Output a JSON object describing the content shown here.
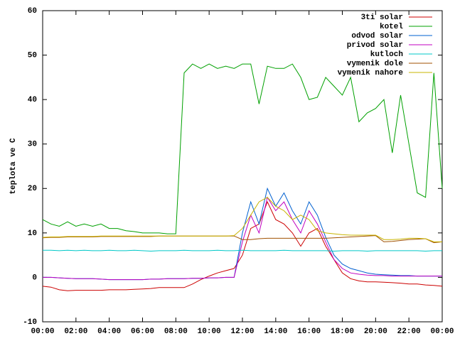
{
  "chart_data": {
    "type": "line",
    "ylabel": "teplota ve C",
    "x": [
      0,
      0.5,
      1,
      1.5,
      2,
      2.5,
      3,
      3.5,
      4,
      4.5,
      5,
      5.5,
      6,
      6.5,
      7,
      7.5,
      8,
      8.5,
      9,
      9.5,
      10,
      10.5,
      11,
      11.5,
      12,
      12.5,
      13,
      13.5,
      14,
      14.5,
      15,
      15.5,
      16,
      16.5,
      17,
      17.5,
      18,
      18.5,
      19,
      19.5,
      20,
      20.5,
      21,
      21.5,
      22,
      22.5,
      23,
      23.5,
      24
    ],
    "xlim": [
      0,
      24
    ],
    "xticks": [
      {
        "value": 0,
        "label": "00:00"
      },
      {
        "value": 2,
        "label": "02:00"
      },
      {
        "value": 4,
        "label": "04:00"
      },
      {
        "value": 6,
        "label": "06:00"
      },
      {
        "value": 8,
        "label": "08:00"
      },
      {
        "value": 10,
        "label": "10:00"
      },
      {
        "value": 12,
        "label": "12:00"
      },
      {
        "value": 14,
        "label": "14:00"
      },
      {
        "value": 16,
        "label": "16:00"
      },
      {
        "value": 18,
        "label": "18:00"
      },
      {
        "value": 20,
        "label": "20:00"
      },
      {
        "value": 22,
        "label": "22:00"
      },
      {
        "value": 24,
        "label": "00:00"
      }
    ],
    "ylim": [
      -10,
      60
    ],
    "yticks": [
      -10,
      0,
      10,
      20,
      30,
      40,
      50,
      60
    ],
    "grid": false,
    "legend": "top-right",
    "series": [
      {
        "name": "3ti solar",
        "color": "#cc0000",
        "values": [
          -2,
          -2.2,
          -2.8,
          -3,
          -2.9,
          -2.9,
          -2.9,
          -2.9,
          -2.8,
          -2.8,
          -2.8,
          -2.7,
          -2.6,
          -2.5,
          -2.3,
          -2.3,
          -2.3,
          -2.3,
          -1.5,
          -0.5,
          0.3,
          1,
          1.5,
          2,
          5,
          11,
          12,
          17,
          13,
          12,
          10,
          7,
          10,
          11,
          7,
          4,
          1,
          -0.3,
          -0.8,
          -1,
          -1,
          -1.1,
          -1.2,
          -1.3,
          -1.5,
          -1.5,
          -1.7,
          -1.8,
          -2
        ]
      },
      {
        "name": "kotel",
        "color": "#00a000",
        "values": [
          13,
          12,
          11.5,
          12.5,
          11.5,
          12,
          11.5,
          12,
          11,
          11,
          10.5,
          10.3,
          10,
          10,
          10,
          9.8,
          9.8,
          46,
          48,
          47,
          48,
          47,
          47.5,
          47,
          48,
          48,
          39,
          47.5,
          47,
          47,
          48,
          45,
          40,
          40.5,
          45,
          43,
          41,
          45,
          35,
          37,
          38,
          40,
          28,
          41,
          30,
          19,
          18,
          46,
          20
        ]
      },
      {
        "name": "odvod solar",
        "color": "#0060d0",
        "values": [
          0,
          0,
          -0.1,
          -0.2,
          -0.3,
          -0.3,
          -0.3,
          -0.4,
          -0.5,
          -0.5,
          -0.5,
          -0.5,
          -0.5,
          -0.4,
          -0.4,
          -0.3,
          -0.3,
          -0.3,
          -0.2,
          -0.2,
          -0.1,
          -0.1,
          0,
          0,
          10,
          17,
          12,
          20,
          16,
          19,
          15,
          12,
          17,
          14,
          9,
          5,
          3,
          2,
          1.5,
          1,
          0.7,
          0.6,
          0.5,
          0.4,
          0.4,
          0.3,
          0.3,
          0.3,
          0.3
        ]
      },
      {
        "name": "privod solar",
        "color": "#c000c0",
        "values": [
          0,
          0,
          -0.1,
          -0.2,
          -0.3,
          -0.3,
          -0.3,
          -0.4,
          -0.5,
          -0.5,
          -0.5,
          -0.5,
          -0.5,
          -0.4,
          -0.4,
          -0.3,
          -0.3,
          -0.3,
          -0.2,
          -0.2,
          -0.1,
          -0.1,
          0,
          0,
          8,
          14,
          10,
          18,
          15,
          17,
          13,
          10,
          15,
          12,
          8,
          4,
          2,
          1,
          0.7,
          0.5,
          0.4,
          0.4,
          0.3,
          0.3,
          0.3,
          0.3,
          0.3,
          0.3,
          0.3
        ]
      },
      {
        "name": "kutloch",
        "color": "#00c8c8",
        "values": [
          6.1,
          6.1,
          6,
          6.1,
          6,
          6.1,
          6,
          6,
          6.1,
          6,
          6,
          6.1,
          6,
          5.9,
          6,
          6,
          6,
          6.1,
          6,
          6,
          6,
          6.1,
          6,
          6,
          6.1,
          6,
          6,
          6,
          6,
          6.1,
          6,
          6,
          6,
          6,
          6,
          5.9,
          6,
          6,
          6,
          5.9,
          6,
          6,
          6,
          6,
          6,
          6,
          5.9,
          6,
          6
        ]
      },
      {
        "name": "vymenik dole",
        "color": "#a05000",
        "values": [
          8.9,
          9,
          9,
          9.1,
          9.1,
          9.1,
          9.1,
          9.2,
          9.2,
          9.2,
          9.2,
          9.2,
          9.2,
          9.2,
          9.3,
          9.3,
          9.3,
          9.3,
          9.3,
          9.3,
          9.3,
          9.3,
          9.3,
          9.3,
          8.5,
          8.5,
          8.7,
          8.8,
          8.8,
          8.8,
          8.8,
          8.8,
          8.8,
          8.8,
          8.8,
          8.9,
          9,
          9.1,
          9.2,
          9.3,
          9.4,
          8,
          8.1,
          8.3,
          8.5,
          8.6,
          8.7,
          7.8,
          8
        ]
      },
      {
        "name": "vymenik nahore",
        "color": "#c8b400",
        "values": [
          9,
          9.1,
          9.1,
          9.2,
          9.2,
          9.2,
          9.2,
          9.3,
          9.3,
          9.3,
          9.3,
          9.3,
          9.3,
          9.3,
          9.3,
          9.3,
          9.3,
          9.3,
          9.3,
          9.3,
          9.3,
          9.3,
          9.3,
          9.4,
          11,
          14,
          17,
          18,
          16,
          15,
          13,
          14,
          13,
          10.5,
          10,
          9.8,
          9.6,
          9.5,
          9.5,
          9.5,
          9.5,
          8.5,
          8.5,
          8.6,
          8.8,
          8.8,
          8.7,
          8,
          8
        ]
      }
    ]
  }
}
